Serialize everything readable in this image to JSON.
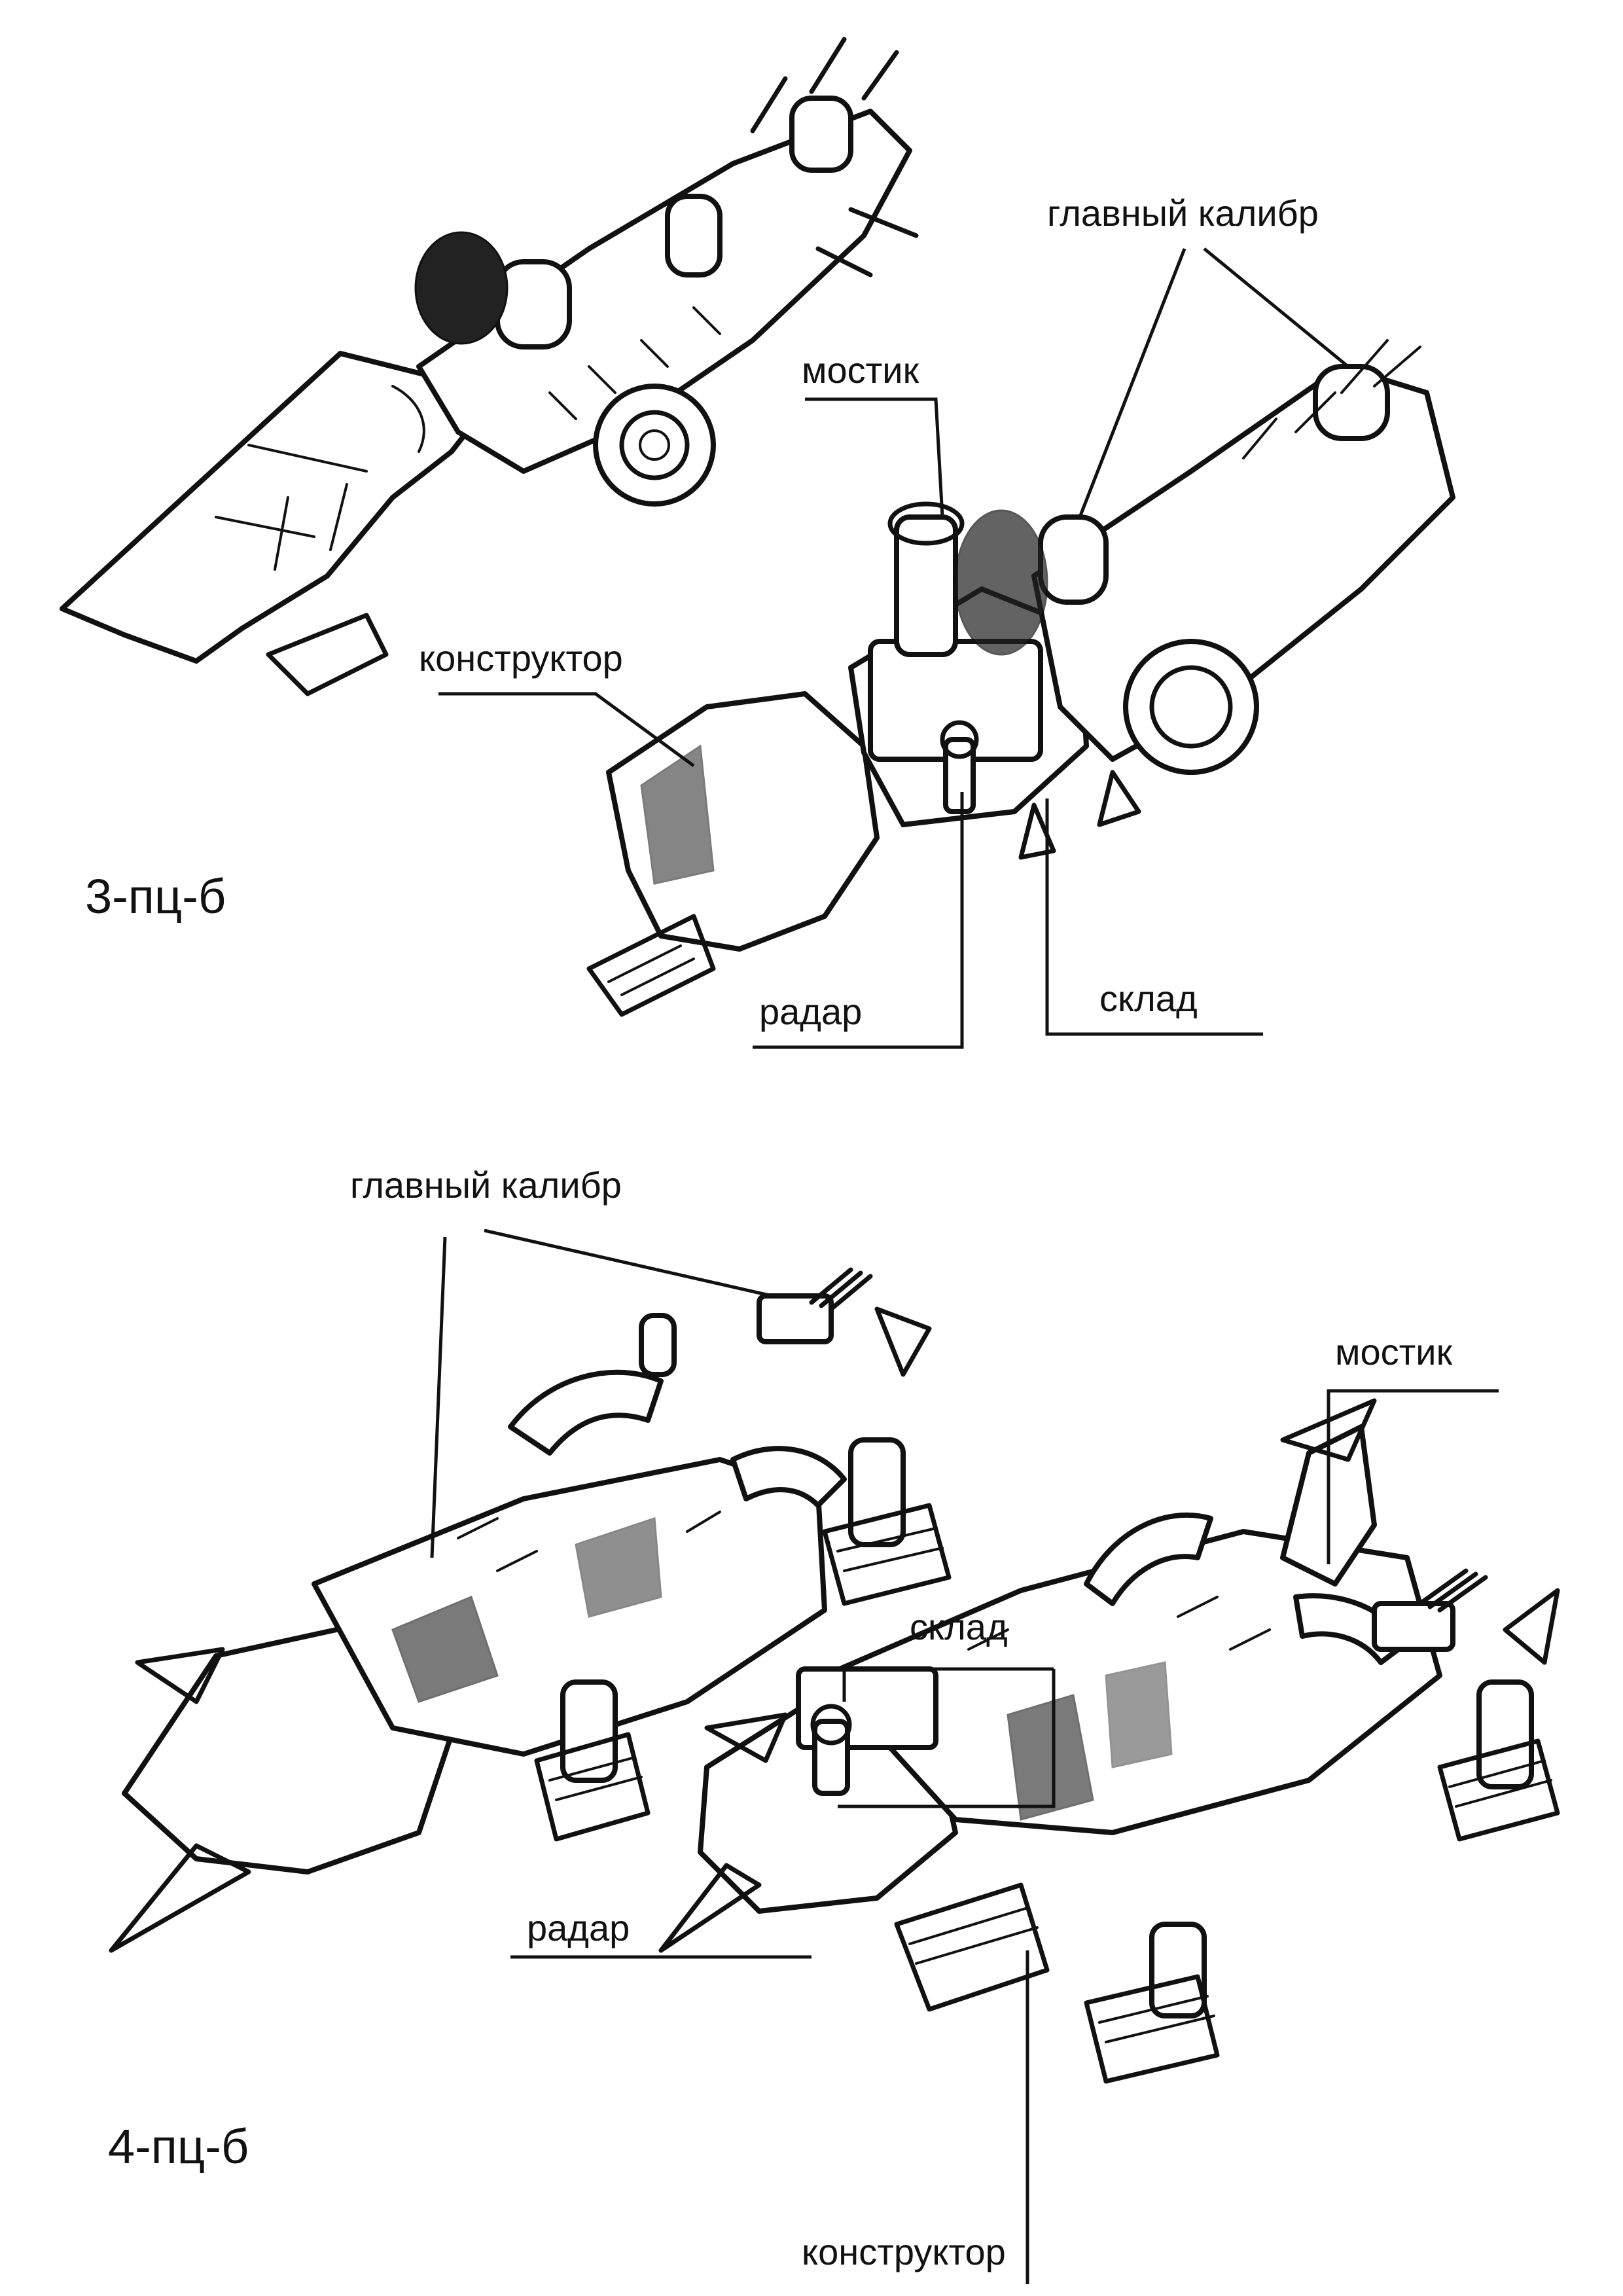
{
  "sheet": {
    "top": {
      "model_name": "3-пц-б",
      "labels": {
        "main_caliber": "главный калибр",
        "bridge": "мостик",
        "constructor": "конструктор",
        "radar": "радар",
        "warehouse": "склад"
      }
    },
    "bottom": {
      "model_name": "4-пц-б",
      "labels": {
        "main_caliber": "главный калибр",
        "bridge": "мостик",
        "warehouse": "склад",
        "radar": "радар",
        "constructor": "конструктор"
      }
    }
  }
}
